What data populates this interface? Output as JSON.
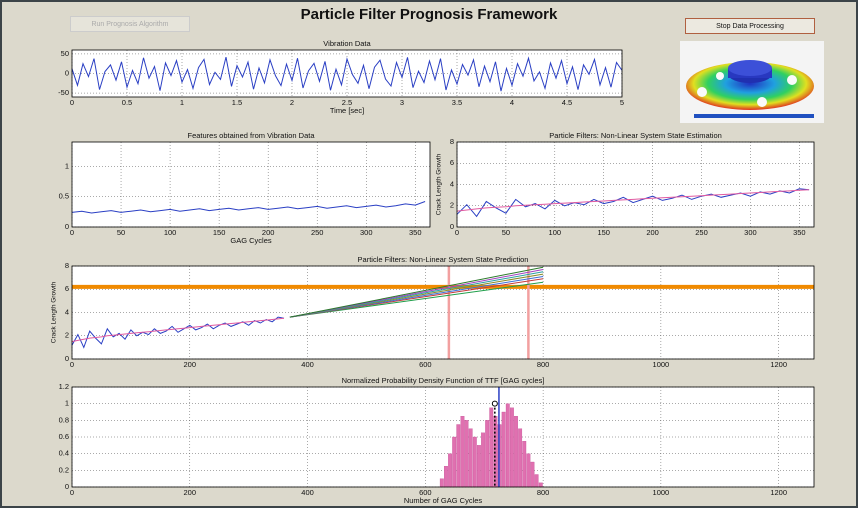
{
  "window": {
    "title": "Particle Filter Prognosis Framework",
    "buttons": [
      "Run Prognosis Algorithm",
      "Stop Data Processing"
    ]
  },
  "chart_data": [
    {
      "type": "line",
      "title": "Vibration Data",
      "xlabel": "Time [sec]",
      "grid": true,
      "xlim": [
        0,
        5
      ],
      "ylim": [
        -60,
        60
      ],
      "xticks": [
        0,
        0.5,
        1,
        1.5,
        2,
        2.5,
        3,
        3.5,
        4,
        4.5,
        5
      ],
      "yticks": [
        -50,
        0,
        50
      ],
      "x": [
        0,
        0.05,
        0.1,
        0.15,
        0.2,
        0.25,
        0.3,
        0.35,
        0.4,
        0.45,
        0.5,
        0.55,
        0.6,
        0.65,
        0.7,
        0.75,
        0.8,
        0.85,
        0.9,
        0.95,
        1,
        1.05,
        1.1,
        1.15,
        1.2,
        1.25,
        1.3,
        1.35,
        1.4,
        1.45,
        1.5,
        1.55,
        1.6,
        1.65,
        1.7,
        1.75,
        1.8,
        1.85,
        1.9,
        1.95,
        2,
        2.05,
        2.1,
        2.15,
        2.2,
        2.25,
        2.3,
        2.35,
        2.4,
        2.45,
        2.5,
        2.55,
        2.6,
        2.65,
        2.7,
        2.75,
        2.8,
        2.85,
        2.9,
        2.95,
        3,
        3.05,
        3.1,
        3.15,
        3.2,
        3.25,
        3.3,
        3.35,
        3.4,
        3.45,
        3.5,
        3.55,
        3.6,
        3.65,
        3.7,
        3.75,
        3.8,
        3.85,
        3.9,
        3.95,
        4,
        4.05,
        4.1,
        4.15,
        4.2,
        4.25,
        4.3,
        4.35,
        4.4,
        4.45,
        4.5,
        4.55,
        4.6,
        4.65,
        4.7,
        4.75,
        4.8,
        4.85,
        4.9,
        4.95,
        5
      ],
      "series": [
        {
          "color": "#2a3fc4",
          "values": [
            12,
            -30,
            25,
            -8,
            38,
            -41,
            5,
            22,
            -17,
            30,
            -35,
            8,
            -26,
            40,
            -12,
            18,
            -44,
            27,
            -5,
            33,
            -22,
            10,
            -38,
            15,
            36,
            -28,
            3,
            -15,
            42,
            -33,
            20,
            -9,
            29,
            -40,
            14,
            -24,
            35,
            -6,
            -31,
            24,
            -18,
            39,
            -37,
            7,
            26,
            -20,
            31,
            -43,
            11,
            -29,
            37,
            -3,
            -25,
            21,
            -39,
            16,
            34,
            -14,
            -32,
            28,
            -10,
            41,
            -36,
            6,
            -23,
            32,
            -16,
            38,
            -42,
            9,
            -27,
            23,
            -4,
            35,
            -34,
            19,
            -21,
            30,
            -45,
            13,
            -30,
            25,
            -7,
            39,
            -19,
            4,
            -38,
            27,
            -12,
            33,
            -26,
            17,
            -41,
            22,
            -2,
            36,
            -29,
            15,
            -35,
            28,
            8
          ]
        }
      ]
    },
    {
      "type": "line",
      "title": "Features obtained from Vibration Data",
      "xlabel": "GAG Cycles",
      "grid": true,
      "xlim": [
        0,
        365
      ],
      "ylim": [
        0,
        1.4
      ],
      "xticks": [
        0,
        50,
        100,
        150,
        200,
        250,
        300,
        350
      ],
      "yticks": [
        0,
        0.5,
        1
      ],
      "x": [
        0,
        10,
        20,
        30,
        40,
        50,
        60,
        70,
        80,
        90,
        100,
        110,
        120,
        130,
        140,
        150,
        160,
        170,
        180,
        190,
        200,
        210,
        220,
        230,
        240,
        250,
        260,
        270,
        280,
        290,
        300,
        310,
        320,
        330,
        340,
        350,
        360
      ],
      "series": [
        {
          "color": "#2a3fc4",
          "values": [
            0.24,
            0.26,
            0.23,
            0.25,
            0.27,
            0.24,
            0.26,
            0.28,
            0.25,
            0.27,
            0.29,
            0.26,
            0.28,
            0.3,
            0.27,
            0.29,
            0.31,
            0.28,
            0.3,
            0.32,
            0.29,
            0.31,
            0.33,
            0.3,
            0.32,
            0.34,
            0.31,
            0.33,
            0.35,
            0.32,
            0.34,
            0.36,
            0.33,
            0.35,
            0.38,
            0.36,
            0.42
          ]
        }
      ]
    },
    {
      "type": "line",
      "title": "Particle Filters: Non-Linear System State Estimation",
      "ylabel": "Crack Length Growth",
      "grid": true,
      "xlim": [
        0,
        365
      ],
      "ylim": [
        0,
        8
      ],
      "xticks": [
        0,
        50,
        100,
        150,
        200,
        250,
        300,
        350
      ],
      "yticks": [
        0,
        2,
        4,
        6,
        8
      ],
      "x": [
        0,
        10,
        20,
        30,
        40,
        50,
        60,
        70,
        80,
        90,
        100,
        110,
        120,
        130,
        140,
        150,
        160,
        170,
        180,
        190,
        200,
        210,
        220,
        230,
        240,
        250,
        260,
        270,
        280,
        290,
        300,
        310,
        320,
        330,
        340,
        350,
        360
      ],
      "series": [
        {
          "color": "#2a3fc4",
          "values": [
            1.2,
            2.1,
            1.0,
            2.4,
            1.8,
            1.3,
            2.6,
            1.9,
            2.2,
            1.7,
            2.5,
            2.0,
            2.3,
            2.1,
            2.6,
            2.2,
            2.4,
            2.8,
            2.3,
            2.6,
            2.9,
            2.5,
            2.7,
            3.0,
            2.6,
            2.9,
            3.1,
            2.8,
            3.0,
            3.2,
            2.9,
            3.3,
            3.1,
            3.4,
            3.2,
            3.6,
            3.5
          ]
        },
        {
          "color": "#e05aa0",
          "values": [
            1.5,
            1.6,
            1.7,
            1.8,
            1.85,
            1.9,
            2.0,
            2.05,
            2.1,
            2.15,
            2.2,
            2.25,
            2.3,
            2.35,
            2.4,
            2.45,
            2.5,
            2.55,
            2.6,
            2.65,
            2.7,
            2.75,
            2.8,
            2.85,
            2.9,
            2.95,
            3.0,
            3.05,
            3.1,
            3.15,
            3.2,
            3.25,
            3.3,
            3.35,
            3.4,
            3.45,
            3.5
          ]
        }
      ]
    },
    {
      "type": "line",
      "title": "Particle Filters: Non-Linear System State Prediction",
      "ylabel": "Crack Length Growth",
      "grid": true,
      "xlim": [
        0,
        1260
      ],
      "ylim": [
        0,
        8
      ],
      "xticks": [
        0,
        200,
        400,
        600,
        800,
        1000,
        1200
      ],
      "yticks": [
        0,
        2,
        4,
        6,
        8
      ],
      "threshold": 6.2,
      "threshold_color": "#f08a00",
      "bounds": [
        640,
        775
      ],
      "bounds_color": "#f2a0a0",
      "x": [
        0,
        10,
        20,
        30,
        40,
        50,
        60,
        70,
        80,
        90,
        100,
        110,
        120,
        130,
        140,
        150,
        160,
        170,
        180,
        190,
        200,
        210,
        220,
        230,
        240,
        250,
        260,
        270,
        280,
        290,
        300,
        310,
        320,
        330,
        340,
        350,
        360
      ],
      "series": [
        {
          "color": "#2a3fc4",
          "values": [
            1.2,
            2.1,
            1.0,
            2.4,
            1.8,
            1.3,
            2.6,
            1.9,
            2.2,
            1.7,
            2.5,
            2.0,
            2.3,
            2.1,
            2.6,
            2.2,
            2.4,
            2.8,
            2.3,
            2.6,
            2.9,
            2.5,
            2.7,
            3.0,
            2.6,
            2.9,
            3.1,
            2.8,
            3.0,
            3.2,
            2.9,
            3.3,
            3.1,
            3.4,
            3.2,
            3.6,
            3.5
          ]
        },
        {
          "color": "#e05aa0",
          "values": [
            1.5,
            1.6,
            1.7,
            1.8,
            1.85,
            1.9,
            2.0,
            2.05,
            2.1,
            2.15,
            2.2,
            2.25,
            2.3,
            2.35,
            2.4,
            2.45,
            2.5,
            2.55,
            2.6,
            2.65,
            2.7,
            2.75,
            2.8,
            2.85,
            2.9,
            2.95,
            3.0,
            3.05,
            3.1,
            3.15,
            3.2,
            3.25,
            3.3,
            3.35,
            3.4,
            3.45,
            3.5
          ]
        }
      ],
      "predictions": {
        "x": [
          370,
          800
        ],
        "series": [
          {
            "color": "#1f9e4a",
            "values": [
              3.6,
              6.6
            ]
          },
          {
            "color": "#c43a3a",
            "values": [
              3.6,
              6.9
            ]
          },
          {
            "color": "#3a6fd6",
            "values": [
              3.6,
              7.1
            ]
          },
          {
            "color": "#8a8a2a",
            "values": [
              3.6,
              7.3
            ]
          },
          {
            "color": "#2aa0a0",
            "values": [
              3.6,
              7.5
            ]
          },
          {
            "color": "#a040c0",
            "values": [
              3.6,
              7.7
            ]
          },
          {
            "color": "#2a7a2a",
            "values": [
              3.6,
              7.9
            ]
          }
        ]
      }
    },
    {
      "type": "histogram",
      "title": "Normalized Probability Density Function of TTF [GAG cycles]",
      "xlabel": "Number of GAG Cycles",
      "grid": true,
      "xlim": [
        0,
        1260
      ],
      "ylim": [
        0,
        1.2
      ],
      "xticks": [
        0,
        200,
        400,
        600,
        800,
        1000,
        1200
      ],
      "yticks": [
        0,
        0.2,
        0.4,
        0.6,
        0.8,
        1,
        1.2
      ],
      "color": "#e070b0",
      "bins": [
        625,
        632,
        639,
        646,
        653,
        660,
        667,
        674,
        681,
        688,
        695,
        702,
        709,
        716,
        723,
        730,
        737,
        744,
        751,
        758,
        765,
        772,
        779,
        786,
        793,
        800
      ],
      "values": [
        0.1,
        0.25,
        0.4,
        0.6,
        0.75,
        0.85,
        0.8,
        0.7,
        0.6,
        0.5,
        0.65,
        0.8,
        0.95,
        0.85,
        0.75,
        0.9,
        1.0,
        0.95,
        0.85,
        0.7,
        0.55,
        0.4,
        0.3,
        0.15,
        0.05
      ],
      "mean": 725,
      "mean_color": "#2a3fc4",
      "marker": {
        "x": 718,
        "y": 1
      }
    }
  ]
}
